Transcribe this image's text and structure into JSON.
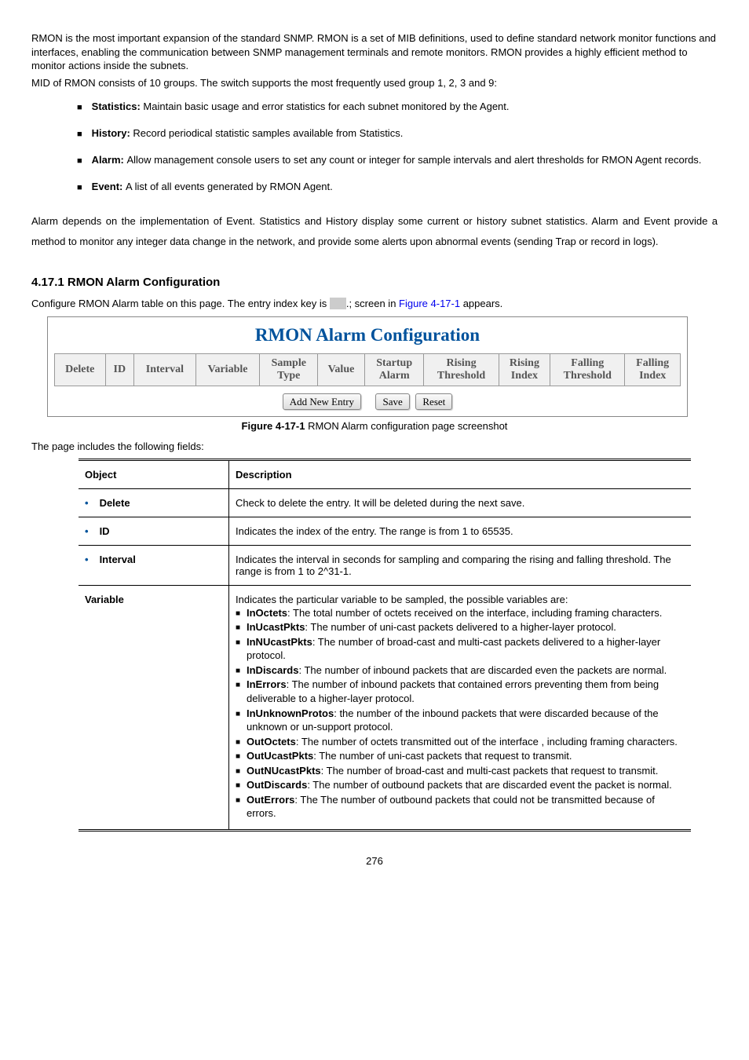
{
  "intro": {
    "p1": "RMON is the most important expansion of the standard SNMP. RMON is a set of MIB definitions, used to define standard network monitor functions and interfaces, enabling the communication between SNMP management terminals and remote monitors. RMON provides a highly efficient method to monitor actions inside the subnets.",
    "p2": "MID of RMON consists of 10 groups. The switch supports the most frequently used group 1, 2, 3 and 9:"
  },
  "groups": [
    {
      "label": "Statistics: ",
      "text": "Maintain basic usage and error statistics for each subnet monitored by the Agent."
    },
    {
      "label": "History: ",
      "text": "Record periodical statistic samples available from Statistics."
    },
    {
      "label": "Alarm: ",
      "text": "Allow management console users to set any count or integer for sample intervals and alert thresholds for RMON Agent records."
    },
    {
      "label": "Event: ",
      "text": "A list of all events generated by RMON Agent."
    }
  ],
  "alarm_para": "Alarm depends on the implementation of Event. Statistics and History display some current or history subnet statistics. Alarm and Event provide a method to monitor any integer data change in the network, and provide some alerts upon abnormal events (sending Trap or record in logs).",
  "section_title": "4.17.1 RMON Alarm Configuration",
  "config_line_prefix": "Configure RMON Alarm table on this page. The entry index key is ",
  "config_line_key": "ID",
  "config_line_mid": ".; screen in ",
  "config_line_link": "Figure 4-17-1",
  "config_line_suffix": " appears.",
  "rmon_title": "RMON Alarm Configuration",
  "rmon_headers": [
    "Delete",
    "ID",
    "Interval",
    "Variable",
    "Sample\nType",
    "Value",
    "Startup\nAlarm",
    "Rising\nThreshold",
    "Rising\nIndex",
    "Falling\nThreshold",
    "Falling\nIndex"
  ],
  "buttons": {
    "add": "Add New Entry",
    "save": "Save",
    "reset": "Reset"
  },
  "caption_prefix": "Figure 4-17-1 ",
  "caption_text": "RMON Alarm configuration page screenshot",
  "fields_intro": "The page includes the following fields:",
  "fields_header": {
    "object": "Object",
    "description": "Description"
  },
  "fields_rows": [
    {
      "obj": "Delete",
      "desc": "Check to delete the entry. It will be deleted during the next save."
    },
    {
      "obj": "ID",
      "desc": "Indicates the index of the entry. The range is from 1 to 65535."
    },
    {
      "obj": "Interval",
      "desc": "Indicates the interval in seconds for sampling and comparing the rising and falling threshold. The range is from 1 to 2^31-1."
    }
  ],
  "variable_row": {
    "obj": "Variable",
    "intro": "Indicates the particular variable to be sampled, the possible variables are:",
    "items": [
      {
        "lbl": "InOctets",
        "txt": ": The total number of octets received on the interface, including framing characters."
      },
      {
        "lbl": "InUcastPkts",
        "txt": ": The number of uni-cast packets delivered to a higher-layer protocol."
      },
      {
        "lbl": "InNUcastPkts",
        "txt": ": The number of broad-cast and multi-cast packets delivered to a higher-layer protocol."
      },
      {
        "lbl": "InDiscards",
        "txt": ": The number of inbound packets that are discarded even the packets are normal."
      },
      {
        "lbl": "InErrors",
        "txt": ": The number of inbound packets that contained errors preventing them from being deliverable to a higher-layer protocol."
      },
      {
        "lbl": "InUnknownProtos",
        "txt": ": the number of the inbound packets that were discarded because of the unknown or un-support protocol."
      },
      {
        "lbl": "OutOctets",
        "txt": ": The number of octets transmitted out of the interface , including framing characters."
      },
      {
        "lbl": "OutUcastPkts",
        "txt": ": The number of uni-cast packets that request to transmit."
      },
      {
        "lbl": "OutNUcastPkts",
        "txt": ": The number of broad-cast and multi-cast packets that request to transmit."
      },
      {
        "lbl": "OutDiscards",
        "txt": ": The number of outbound packets that are discarded event the packet is normal."
      },
      {
        "lbl": "OutErrors",
        "txt": ": The The number of outbound packets that could not be transmitted because of errors."
      }
    ]
  },
  "page_number": "276"
}
